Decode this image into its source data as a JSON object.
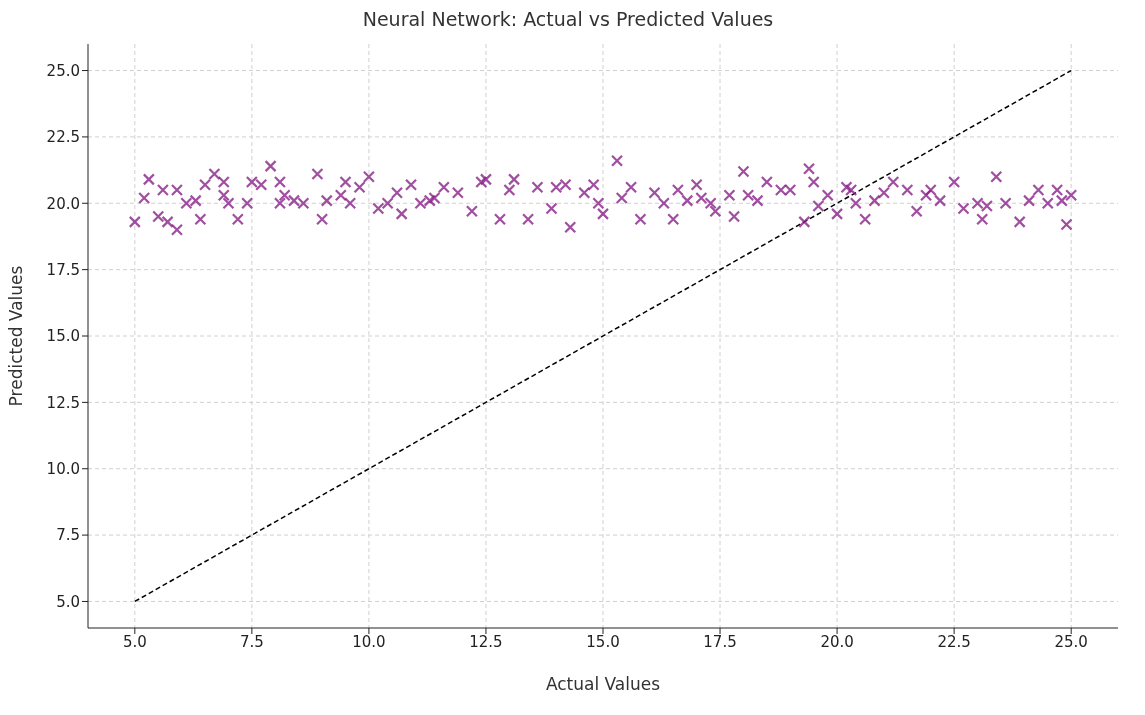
{
  "chart_data": {
    "type": "scatter",
    "title": "Neural Network: Actual vs Predicted Values",
    "xlabel": "Actual Values",
    "ylabel": "Predicted Values",
    "xlim": [
      4,
      26
    ],
    "ylim": [
      4,
      26
    ],
    "xticks": [
      {
        "value": 5,
        "label": "5.0"
      },
      {
        "value": 7.5,
        "label": "7.5"
      },
      {
        "value": 10,
        "label": "10.0"
      },
      {
        "value": 12.5,
        "label": "12.5"
      },
      {
        "value": 15,
        "label": "15.0"
      },
      {
        "value": 17.5,
        "label": "17.5"
      },
      {
        "value": 20,
        "label": "20.0"
      },
      {
        "value": 22.5,
        "label": "22.5"
      },
      {
        "value": 25,
        "label": "25.0"
      }
    ],
    "yticks": [
      {
        "value": 5,
        "label": "5.0"
      },
      {
        "value": 7.5,
        "label": "7.5"
      },
      {
        "value": 10,
        "label": "10.0"
      },
      {
        "value": 12.5,
        "label": "12.5"
      },
      {
        "value": 15,
        "label": "15.0"
      },
      {
        "value": 17.5,
        "label": "17.5"
      },
      {
        "value": 20,
        "label": "20.0"
      },
      {
        "value": 22.5,
        "label": "22.5"
      },
      {
        "value": 25,
        "label": "25.0"
      }
    ],
    "grid": true,
    "series": [
      {
        "marker": "cross",
        "color": "#882288",
        "x": [
          5.0,
          5.2,
          5.3,
          5.5,
          5.6,
          5.7,
          5.9,
          5.9,
          6.1,
          6.3,
          6.4,
          6.5,
          6.7,
          6.9,
          6.9,
          7.0,
          7.2,
          7.4,
          7.5,
          7.7,
          7.9,
          8.1,
          8.1,
          8.2,
          8.4,
          8.6,
          8.9,
          9.0,
          9.1,
          9.4,
          9.5,
          9.6,
          9.8,
          10.0,
          10.2,
          10.4,
          10.6,
          10.7,
          10.9,
          11.1,
          11.3,
          11.4,
          11.6,
          11.9,
          12.2,
          12.4,
          12.5,
          12.8,
          13.0,
          13.1,
          13.4,
          13.6,
          13.9,
          14.0,
          14.2,
          14.3,
          14.6,
          14.8,
          14.9,
          15.0,
          15.3,
          15.4,
          15.6,
          15.8,
          16.1,
          16.3,
          16.5,
          16.6,
          16.8,
          17.0,
          17.1,
          17.3,
          17.4,
          17.7,
          17.8,
          18.0,
          18.1,
          18.3,
          18.5,
          18.8,
          19.0,
          19.3,
          19.4,
          19.5,
          19.6,
          19.8,
          20.0,
          20.2,
          20.3,
          20.4,
          20.6,
          20.8,
          21.0,
          21.2,
          21.5,
          21.7,
          21.9,
          22.0,
          22.2,
          22.5,
          22.7,
          23.0,
          23.1,
          23.2,
          23.4,
          23.6,
          23.9,
          24.1,
          24.3,
          24.5,
          24.7,
          24.8,
          24.9,
          25.0
        ],
        "values": [
          19.3,
          20.2,
          20.9,
          19.5,
          20.5,
          19.3,
          20.5,
          19.0,
          20.0,
          20.1,
          19.4,
          20.7,
          21.1,
          20.3,
          20.8,
          20.0,
          19.4,
          20.0,
          20.8,
          20.7,
          21.4,
          20.0,
          20.8,
          20.3,
          20.1,
          20.0,
          21.1,
          19.4,
          20.1,
          20.3,
          20.8,
          20.0,
          20.6,
          21.0,
          19.8,
          20.0,
          20.4,
          19.6,
          20.7,
          20.0,
          20.1,
          20.2,
          20.6,
          20.4,
          19.7,
          20.8,
          20.9,
          19.4,
          20.5,
          20.9,
          19.4,
          20.6,
          19.8,
          20.6,
          20.7,
          19.1,
          20.4,
          20.7,
          20.0,
          19.6,
          21.6,
          20.2,
          20.6,
          19.4,
          20.4,
          20.0,
          19.4,
          20.5,
          20.1,
          20.7,
          20.2,
          20.0,
          19.7,
          20.3,
          19.5,
          21.2,
          20.3,
          20.1,
          20.8,
          20.5,
          20.5,
          19.3,
          21.3,
          20.8,
          19.9,
          20.3,
          19.6,
          20.6,
          20.5,
          20.0,
          19.4,
          20.1,
          20.4,
          20.8,
          20.5,
          19.7,
          20.3,
          20.5,
          20.1,
          20.8,
          19.8,
          20.0,
          19.4,
          19.9,
          21.0,
          20.0,
          19.3,
          20.1,
          20.5,
          20.0,
          20.5,
          20.1,
          19.2,
          20.3
        ]
      },
      {
        "type": "line",
        "color": "#000000",
        "line_style": "dashed",
        "x": [
          5,
          25
        ],
        "values": [
          5,
          25
        ]
      }
    ]
  }
}
